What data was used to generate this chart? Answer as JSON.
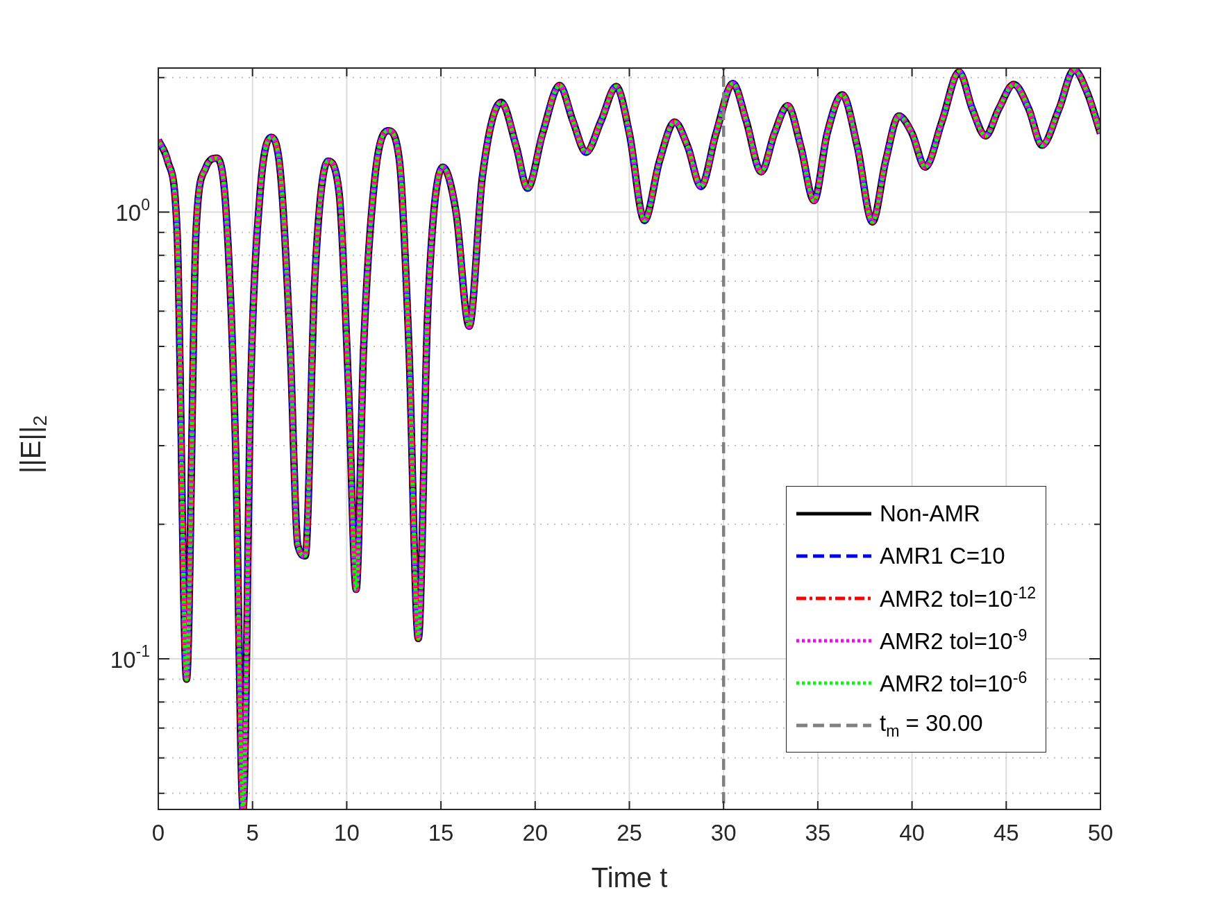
{
  "chart_data": {
    "type": "line",
    "xlabel": "Time t",
    "ylabel": "||E||$_{2}$",
    "x": [
      0,
      0.5,
      1.0,
      1.5,
      2.0,
      2.5,
      3.1,
      3.6,
      4.1,
      4.5,
      4.9,
      5.4,
      6.0,
      6.5,
      7.0,
      7.4,
      7.8,
      8.3,
      9.0,
      9.6,
      10.1,
      10.5,
      10.9,
      11.5,
      12.2,
      12.8,
      13.3,
      13.8,
      14.3,
      15.1,
      15.8,
      16.5,
      17.2,
      18.2,
      19.0,
      19.6,
      20.4,
      21.3,
      22.0,
      22.7,
      23.5,
      24.3,
      25.0,
      25.8,
      26.6,
      27.4,
      28.1,
      28.8,
      29.6,
      30.5,
      31.2,
      32.0,
      32.7,
      33.4,
      34.1,
      34.8,
      35.5,
      36.3,
      37.1,
      37.9,
      38.6,
      39.3,
      40.0,
      40.7,
      41.6,
      42.5,
      43.2,
      43.9,
      44.6,
      45.4,
      46.2,
      46.9,
      47.8,
      48.6,
      49.3,
      50
    ],
    "xlim": [
      0,
      50
    ],
    "xticks": [
      0,
      5,
      10,
      15,
      20,
      25,
      30,
      35,
      40,
      45,
      50
    ],
    "ylim": [
      0.046,
      2.1
    ],
    "yticks": [
      {
        "value": 0.05,
        "label": null
      },
      {
        "value": 0.06,
        "label": null
      },
      {
        "value": 0.07,
        "label": null
      },
      {
        "value": 0.08,
        "label": null
      },
      {
        "value": 0.09,
        "label": null
      },
      {
        "value": 0.1,
        "label": "10$^{-1}$"
      },
      {
        "value": 0.2,
        "label": null
      },
      {
        "value": 0.3,
        "label": null
      },
      {
        "value": 0.4,
        "label": null
      },
      {
        "value": 0.5,
        "label": null
      },
      {
        "value": 0.6,
        "label": null
      },
      {
        "value": 0.7,
        "label": null
      },
      {
        "value": 0.8,
        "label": null
      },
      {
        "value": 0.9,
        "label": null
      },
      {
        "value": 1,
        "label": "10$^{0}$"
      },
      {
        "value": 2,
        "label": null
      }
    ],
    "log": "y",
    "grid": true,
    "legend": "bottom right",
    "marker": "none",
    "series": [
      {
        "name": "Non-AMR",
        "color": "#000000",
        "line_style": "solid",
        "values": [
          1.45,
          1.3,
          0.9,
          0.09,
          0.9,
          1.25,
          1.32,
          1.0,
          0.3,
          0.046,
          0.4,
          1.1,
          1.47,
          1.2,
          0.5,
          0.18,
          0.17,
          0.7,
          1.3,
          1.1,
          0.4,
          0.143,
          0.5,
          1.2,
          1.52,
          1.3,
          0.5,
          0.111,
          0.6,
          1.26,
          1.0,
          0.555,
          1.2,
          1.76,
          1.4,
          1.13,
          1.5,
          1.92,
          1.6,
          1.36,
          1.6,
          1.91,
          1.5,
          0.957,
          1.3,
          1.59,
          1.4,
          1.14,
          1.5,
          1.94,
          1.6,
          1.23,
          1.5,
          1.73,
          1.4,
          1.06,
          1.5,
          1.83,
          1.4,
          0.95,
          1.3,
          1.64,
          1.5,
          1.26,
          1.6,
          2.06,
          1.7,
          1.48,
          1.7,
          1.93,
          1.7,
          1.41,
          1.7,
          2.08,
          1.85,
          1.5
        ]
      },
      {
        "name": "AMR1 C=10",
        "color": "#0000ff",
        "line_style": "dashed",
        "values": [
          1.45,
          1.3,
          0.9,
          0.09,
          0.9,
          1.25,
          1.32,
          1.0,
          0.3,
          0.046,
          0.4,
          1.1,
          1.47,
          1.2,
          0.5,
          0.18,
          0.17,
          0.7,
          1.3,
          1.1,
          0.4,
          0.143,
          0.5,
          1.2,
          1.52,
          1.3,
          0.5,
          0.111,
          0.6,
          1.26,
          1.0,
          0.555,
          1.2,
          1.76,
          1.4,
          1.13,
          1.5,
          1.92,
          1.6,
          1.36,
          1.6,
          1.91,
          1.5,
          0.957,
          1.3,
          1.59,
          1.4,
          1.14,
          1.5,
          1.94,
          1.6,
          1.23,
          1.5,
          1.73,
          1.4,
          1.06,
          1.5,
          1.83,
          1.4,
          0.95,
          1.3,
          1.64,
          1.5,
          1.26,
          1.6,
          2.06,
          1.7,
          1.48,
          1.7,
          1.93,
          1.7,
          1.41,
          1.7,
          2.08,
          1.85,
          1.5
        ]
      },
      {
        "name": "AMR2 tol=10$^{-12}$",
        "color": "#ff0000",
        "line_style": "dashdot",
        "values": [
          1.45,
          1.3,
          0.9,
          0.09,
          0.9,
          1.25,
          1.32,
          1.0,
          0.3,
          0.046,
          0.4,
          1.1,
          1.47,
          1.2,
          0.5,
          0.18,
          0.17,
          0.7,
          1.3,
          1.1,
          0.4,
          0.143,
          0.5,
          1.2,
          1.52,
          1.3,
          0.5,
          0.111,
          0.6,
          1.26,
          1.0,
          0.555,
          1.2,
          1.76,
          1.4,
          1.13,
          1.5,
          1.92,
          1.6,
          1.36,
          1.6,
          1.91,
          1.5,
          0.957,
          1.3,
          1.59,
          1.4,
          1.14,
          1.5,
          1.94,
          1.6,
          1.23,
          1.5,
          1.73,
          1.4,
          1.06,
          1.5,
          1.83,
          1.4,
          0.95,
          1.3,
          1.64,
          1.5,
          1.26,
          1.6,
          2.06,
          1.7,
          1.48,
          1.7,
          1.93,
          1.7,
          1.41,
          1.7,
          2.08,
          1.85,
          1.5
        ]
      },
      {
        "name": "AMR2 tol=10$^{-9}$",
        "color": "#ff00ff",
        "line_style": "dotted",
        "values": [
          1.45,
          1.3,
          0.9,
          0.09,
          0.9,
          1.25,
          1.32,
          1.0,
          0.3,
          0.046,
          0.4,
          1.1,
          1.47,
          1.2,
          0.5,
          0.18,
          0.17,
          0.7,
          1.3,
          1.1,
          0.4,
          0.143,
          0.5,
          1.2,
          1.52,
          1.3,
          0.5,
          0.111,
          0.6,
          1.26,
          1.0,
          0.555,
          1.2,
          1.76,
          1.4,
          1.13,
          1.5,
          1.92,
          1.6,
          1.36,
          1.6,
          1.91,
          1.5,
          0.957,
          1.3,
          1.59,
          1.4,
          1.14,
          1.5,
          1.94,
          1.6,
          1.23,
          1.5,
          1.73,
          1.4,
          1.06,
          1.5,
          1.83,
          1.4,
          0.95,
          1.3,
          1.64,
          1.5,
          1.26,
          1.6,
          2.06,
          1.7,
          1.48,
          1.7,
          1.93,
          1.7,
          1.41,
          1.7,
          2.08,
          1.85,
          1.5
        ]
      },
      {
        "name": "AMR2 tol=10$^{-6}$",
        "color": "#00ff00",
        "line_style": "dotted",
        "values": [
          1.45,
          1.3,
          0.9,
          0.09,
          0.9,
          1.25,
          1.32,
          1.0,
          0.3,
          0.046,
          0.4,
          1.1,
          1.47,
          1.2,
          0.5,
          0.18,
          0.17,
          0.7,
          1.3,
          1.1,
          0.4,
          0.143,
          0.5,
          1.2,
          1.52,
          1.3,
          0.5,
          0.111,
          0.6,
          1.26,
          1.0,
          0.555,
          1.2,
          1.76,
          1.4,
          1.13,
          1.5,
          1.92,
          1.6,
          1.36,
          1.6,
          1.91,
          1.5,
          0.957,
          1.3,
          1.59,
          1.4,
          1.14,
          1.5,
          1.94,
          1.6,
          1.23,
          1.5,
          1.73,
          1.4,
          1.06,
          1.5,
          1.83,
          1.4,
          0.95,
          1.3,
          1.64,
          1.5,
          1.26,
          1.6,
          2.06,
          1.7,
          1.48,
          1.7,
          1.93,
          1.7,
          1.41,
          1.7,
          2.08,
          1.85,
          1.5
        ]
      },
      {
        "name": "t$_{m}$ = 30.00",
        "color": "#808080",
        "line_style": "dashed",
        "x": [
          30,
          30
        ],
        "values": [
          0.046,
          2.1
        ]
      }
    ]
  }
}
